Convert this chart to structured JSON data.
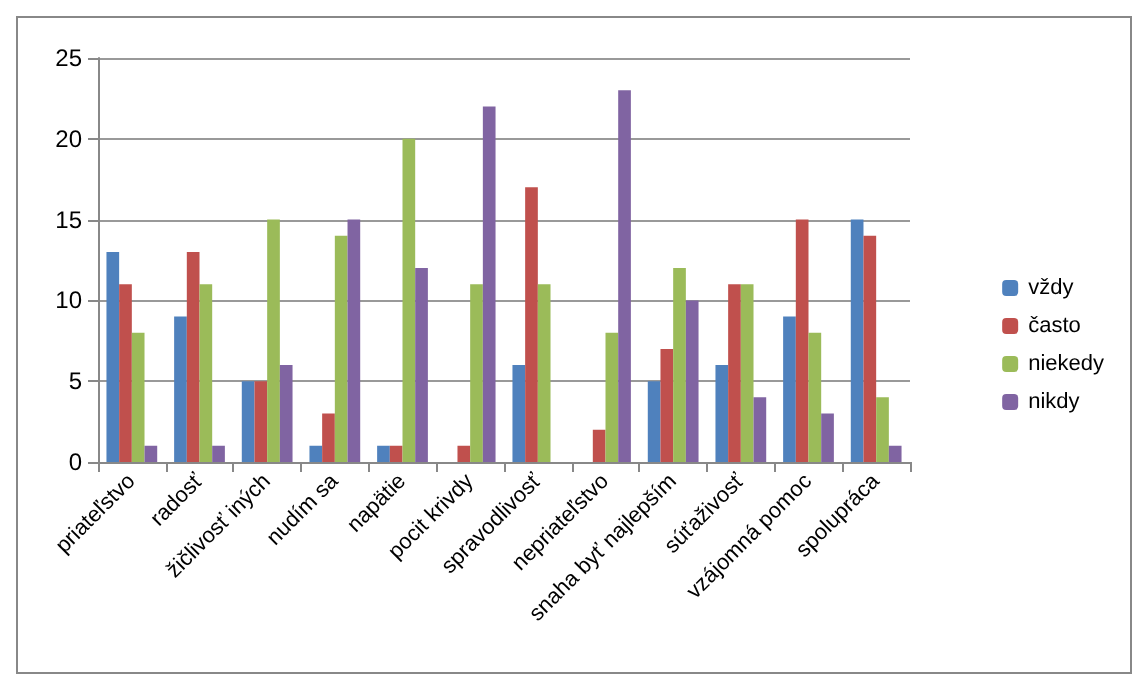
{
  "chart_data": {
    "type": "bar",
    "categories": [
      "priateľstvo",
      "radosť",
      "žičlivosť iných",
      "nudím sa",
      "napätie",
      "pocit krivdy",
      "spravodlivosť",
      "nepriateľstvo",
      "snaha byť najlepším",
      "súťaživosť",
      "vzájomná pomoc",
      "spolupráca"
    ],
    "series": [
      {
        "name": "vždy",
        "color": "#4f81bd",
        "values": [
          13,
          9,
          5,
          1,
          1,
          0,
          6,
          0,
          5,
          6,
          9,
          15
        ]
      },
      {
        "name": "často",
        "color": "#c0504d",
        "values": [
          11,
          13,
          5,
          3,
          1,
          1,
          17,
          2,
          7,
          11,
          15,
          14
        ]
      },
      {
        "name": "niekedy",
        "color": "#9bbb59",
        "values": [
          8,
          11,
          15,
          14,
          20,
          11,
          11,
          8,
          12,
          11,
          8,
          4
        ]
      },
      {
        "name": "nikdy",
        "color": "#8064a2",
        "values": [
          1,
          1,
          6,
          15,
          12,
          22,
          0,
          23,
          10,
          4,
          3,
          1
        ]
      }
    ],
    "ylim": [
      0,
      25
    ],
    "yticks": [
      0,
      5,
      10,
      15,
      20,
      25
    ],
    "grid": "y",
    "legend": "right"
  }
}
